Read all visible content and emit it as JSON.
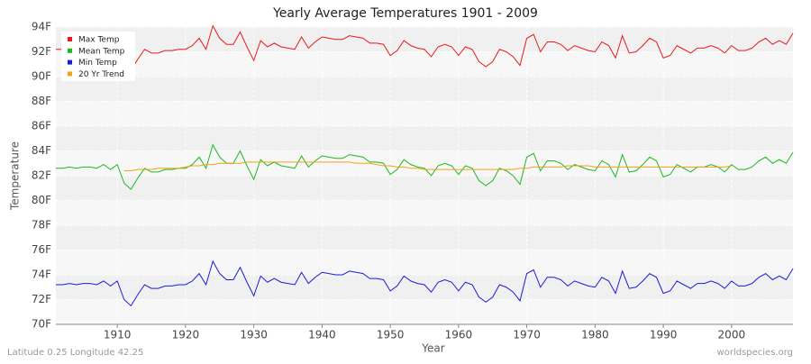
{
  "chart_data": {
    "type": "line",
    "title": "Yearly Average Temperatures 1901 - 2009",
    "x_label": "Year",
    "y_label": "Temperature",
    "footer_left": "Latitude 0.25 Longitude 42.25",
    "footer_right": "worldspecies.org",
    "legend": "top-left",
    "grid": true,
    "x": [
      1901,
      1902,
      1903,
      1904,
      1905,
      1906,
      1907,
      1908,
      1909,
      1910,
      1911,
      1912,
      1913,
      1914,
      1915,
      1916,
      1917,
      1918,
      1919,
      1920,
      1921,
      1922,
      1923,
      1924,
      1925,
      1926,
      1927,
      1928,
      1929,
      1930,
      1931,
      1932,
      1933,
      1934,
      1935,
      1936,
      1937,
      1938,
      1939,
      1940,
      1941,
      1942,
      1943,
      1944,
      1945,
      1946,
      1947,
      1948,
      1949,
      1950,
      1951,
      1952,
      1953,
      1954,
      1955,
      1956,
      1957,
      1958,
      1959,
      1960,
      1961,
      1962,
      1963,
      1964,
      1965,
      1966,
      1967,
      1968,
      1969,
      1970,
      1971,
      1972,
      1973,
      1974,
      1975,
      1976,
      1977,
      1978,
      1979,
      1980,
      1981,
      1982,
      1983,
      1984,
      1985,
      1986,
      1987,
      1988,
      1989,
      1990,
      1991,
      1992,
      1993,
      1994,
      1995,
      1996,
      1997,
      1998,
      1999,
      2000,
      2001,
      2002,
      2003,
      2004,
      2005,
      2006,
      2007,
      2008,
      2009
    ],
    "xlim": [
      1901,
      2009
    ],
    "xticks": [
      1910,
      1920,
      1930,
      1940,
      1950,
      1960,
      1970,
      1980,
      1990,
      2000
    ],
    "ylim": [
      70,
      94
    ],
    "yticks": [
      {
        "value": 70,
        "label": "70F"
      },
      {
        "value": 72,
        "label": "72F"
      },
      {
        "value": 74,
        "label": "74F"
      },
      {
        "value": 76,
        "label": "76F"
      },
      {
        "value": 78,
        "label": "78F"
      },
      {
        "value": 80,
        "label": "80F"
      },
      {
        "value": 82,
        "label": "82F"
      },
      {
        "value": 84,
        "label": "84F"
      },
      {
        "value": 86,
        "label": "86F"
      },
      {
        "value": 88,
        "label": "88F"
      },
      {
        "value": 90,
        "label": "90F"
      },
      {
        "value": 92,
        "label": "92F"
      },
      {
        "value": 94,
        "label": "94F"
      }
    ],
    "series": [
      {
        "name": "Max Temp",
        "color": "#e8191c",
        "values": [
          92.2,
          92.2,
          92.3,
          92.2,
          92.3,
          92.3,
          92.2,
          92.5,
          92.1,
          92.5,
          91.0,
          90.5,
          91.4,
          92.2,
          91.9,
          91.9,
          92.1,
          92.1,
          92.2,
          92.2,
          92.5,
          93.1,
          92.2,
          94.1,
          93.1,
          92.6,
          92.6,
          93.6,
          92.4,
          91.3,
          92.9,
          92.4,
          92.7,
          92.4,
          92.3,
          92.2,
          93.2,
          92.3,
          92.8,
          93.2,
          93.1,
          93.0,
          93.0,
          93.3,
          93.2,
          93.1,
          92.7,
          92.7,
          92.6,
          91.7,
          92.1,
          92.9,
          92.5,
          92.3,
          92.2,
          91.6,
          92.4,
          92.6,
          92.4,
          91.7,
          92.4,
          92.2,
          91.2,
          90.8,
          91.2,
          92.2,
          92.0,
          91.6,
          90.9,
          93.1,
          93.4,
          92.0,
          92.8,
          92.8,
          92.6,
          92.1,
          92.5,
          92.3,
          92.1,
          92.0,
          92.8,
          92.5,
          91.5,
          93.3,
          91.9,
          92.0,
          92.5,
          93.1,
          92.8,
          91.5,
          91.7,
          92.5,
          92.2,
          91.9,
          92.3,
          92.3,
          92.5,
          92.3,
          91.9,
          92.5,
          92.1,
          92.1,
          92.3,
          92.8,
          93.1,
          92.6,
          92.9,
          92.6,
          93.5
        ]
      },
      {
        "name": "Mean Temp",
        "color": "#1cba1c",
        "values": [
          82.6,
          82.6,
          82.7,
          82.6,
          82.7,
          82.7,
          82.6,
          82.9,
          82.5,
          82.9,
          81.4,
          80.9,
          81.8,
          82.6,
          82.3,
          82.3,
          82.5,
          82.5,
          82.6,
          82.6,
          82.9,
          83.5,
          82.6,
          84.5,
          83.5,
          83.0,
          83.0,
          84.0,
          82.8,
          81.7,
          83.3,
          82.8,
          83.1,
          82.8,
          82.7,
          82.6,
          83.6,
          82.7,
          83.2,
          83.6,
          83.5,
          83.4,
          83.4,
          83.7,
          83.6,
          83.5,
          83.1,
          83.1,
          83.0,
          82.1,
          82.5,
          83.3,
          82.9,
          82.7,
          82.6,
          82.0,
          82.8,
          83.0,
          82.8,
          82.1,
          82.8,
          82.6,
          81.6,
          81.2,
          81.6,
          82.6,
          82.4,
          82.0,
          81.3,
          83.5,
          83.8,
          82.4,
          83.2,
          83.2,
          83.0,
          82.5,
          82.9,
          82.7,
          82.5,
          82.4,
          83.2,
          82.9,
          81.9,
          83.7,
          82.3,
          82.4,
          82.9,
          83.5,
          83.2,
          81.9,
          82.1,
          82.9,
          82.6,
          82.3,
          82.7,
          82.7,
          82.9,
          82.7,
          82.3,
          82.9,
          82.5,
          82.5,
          82.7,
          83.2,
          83.5,
          83.0,
          83.3,
          83.0,
          83.9
        ]
      },
      {
        "name": "Min Temp",
        "color": "#1c1cd8",
        "values": [
          73.2,
          73.2,
          73.3,
          73.2,
          73.3,
          73.3,
          73.2,
          73.5,
          73.1,
          73.5,
          72.0,
          71.5,
          72.4,
          73.2,
          72.9,
          72.9,
          73.1,
          73.1,
          73.2,
          73.2,
          73.5,
          74.1,
          73.2,
          75.1,
          74.1,
          73.6,
          73.6,
          74.6,
          73.4,
          72.3,
          73.9,
          73.4,
          73.7,
          73.4,
          73.3,
          73.2,
          74.2,
          73.3,
          73.8,
          74.2,
          74.1,
          74.0,
          74.0,
          74.3,
          74.2,
          74.1,
          73.7,
          73.7,
          73.6,
          72.7,
          73.1,
          73.9,
          73.5,
          73.3,
          73.2,
          72.6,
          73.4,
          73.6,
          73.4,
          72.7,
          73.4,
          73.2,
          72.2,
          71.8,
          72.2,
          73.2,
          73.0,
          72.6,
          71.9,
          74.1,
          74.4,
          73.0,
          73.8,
          73.8,
          73.6,
          73.1,
          73.5,
          73.3,
          73.1,
          73.0,
          73.8,
          73.5,
          72.5,
          74.3,
          72.9,
          73.0,
          73.5,
          74.1,
          73.8,
          72.5,
          72.7,
          73.5,
          73.2,
          72.9,
          73.3,
          73.3,
          73.5,
          73.3,
          72.9,
          73.5,
          73.1,
          73.1,
          73.3,
          73.8,
          74.1,
          73.6,
          73.9,
          73.6,
          74.5
        ]
      },
      {
        "name": "20 Yr Trend",
        "color": "#f5a019",
        "values": [
          null,
          null,
          null,
          null,
          null,
          null,
          null,
          null,
          null,
          null,
          82.4,
          82.4,
          82.5,
          82.5,
          82.5,
          82.6,
          82.6,
          82.6,
          82.6,
          82.7,
          82.8,
          82.8,
          82.9,
          82.9,
          83.0,
          83.0,
          83.0,
          83.0,
          83.1,
          83.1,
          83.1,
          83.1,
          83.1,
          83.1,
          83.1,
          83.1,
          83.1,
          83.1,
          83.1,
          83.1,
          83.1,
          83.1,
          83.1,
          83.1,
          83.0,
          83.0,
          83.0,
          82.9,
          82.8,
          82.8,
          82.7,
          82.7,
          82.6,
          82.6,
          82.5,
          82.5,
          82.5,
          82.5,
          82.5,
          82.5,
          82.5,
          82.5,
          82.5,
          82.5,
          82.5,
          82.5,
          82.5,
          82.5,
          82.6,
          82.6,
          82.7,
          82.7,
          82.7,
          82.7,
          82.7,
          82.8,
          82.8,
          82.8,
          82.8,
          82.7,
          82.7,
          82.7,
          82.7,
          82.7,
          82.7,
          82.7,
          82.7,
          82.7,
          82.7,
          82.7,
          82.7,
          82.7,
          82.7,
          82.7,
          82.7,
          82.7,
          82.7,
          82.7,
          82.7,
          82.8,
          null,
          null,
          null,
          null,
          null,
          null,
          null,
          null,
          null
        ]
      }
    ]
  }
}
